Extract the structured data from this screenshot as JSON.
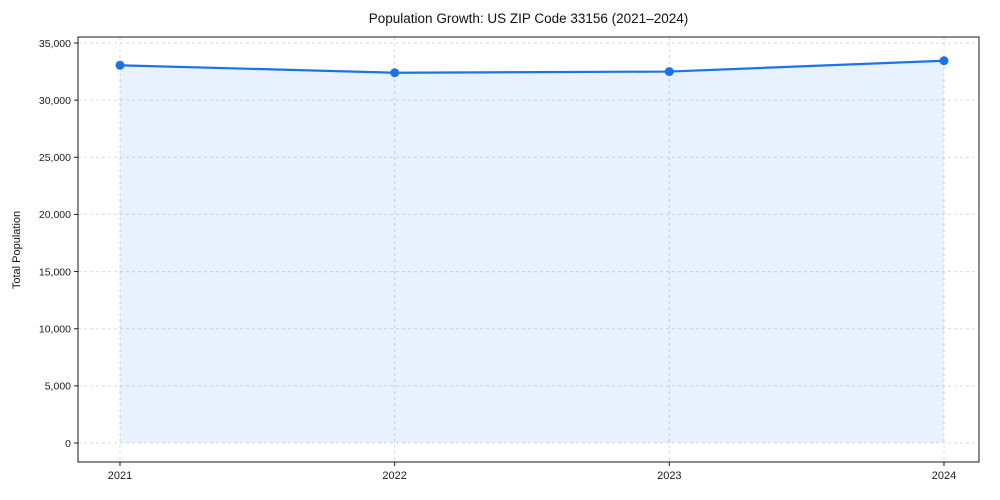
{
  "chart_data": {
    "type": "line",
    "title": "Population Growth: US ZIP Code 33156 (2021–2024)",
    "xlabel": "",
    "ylabel": "Total Population",
    "x": [
      2021,
      2022,
      2023,
      2024
    ],
    "x_tick_labels": [
      "2021",
      "2022",
      "2023",
      "2024"
    ],
    "series": [
      {
        "name": "Total Population",
        "values": [
          33050,
          32400,
          32500,
          33450
        ],
        "marker": "circle",
        "area_fill": true
      }
    ],
    "ylim": [
      0,
      35000
    ],
    "y_ticks": [
      0,
      5000,
      10000,
      15000,
      20000,
      25000,
      30000,
      35000
    ],
    "y_tick_labels": [
      "0",
      "5,000",
      "10,000",
      "15,000",
      "20,000",
      "25,000",
      "30,000",
      "35,000"
    ],
    "grid": true,
    "grid_style": "dashed",
    "legend": "none",
    "colors": {
      "line": "#1a73e8",
      "fill": "rgba(26,115,232,0.10)",
      "grid": "#d9d9d9",
      "frame": "#1a1a1a",
      "text": "#1a1a1a"
    }
  }
}
